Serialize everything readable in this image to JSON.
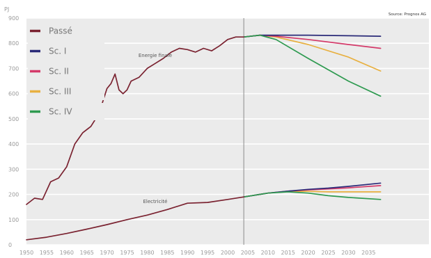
{
  "chart_data": {
    "type": "line",
    "title": "",
    "unit_label": "PJ",
    "source_note": "Source: Prognos AG",
    "xlabel": "",
    "ylabel": "",
    "xlim": [
      1950,
      2050
    ],
    "ylim": [
      0,
      900
    ],
    "grid": true,
    "divider_year": 2004,
    "legend_position": "top-left",
    "y_ticks": [
      0,
      100,
      200,
      300,
      400,
      500,
      600,
      700,
      800,
      900
    ],
    "x_ticks": [
      1950,
      1955,
      1960,
      1965,
      1970,
      1975,
      1980,
      1985,
      1990,
      1995,
      2000,
      2005,
      2010,
      2015,
      2020,
      2025,
      2030,
      2035
    ],
    "x_tick_labels": [
      "1950",
      "1955",
      "1960",
      "1965",
      "1970",
      "1975",
      "1980",
      "1985",
      "1990",
      "1995",
      "2000",
      "2005",
      "2010",
      "2015",
      "2020",
      "2025",
      "2030",
      "2035"
    ],
    "annotations": [
      {
        "text": "Energie finale",
        "x": 1982,
        "y": 745
      },
      {
        "text": "Electricité",
        "x": 1982,
        "y": 165
      }
    ],
    "legend": [
      {
        "key": "passe",
        "label": "Passé",
        "color": "#7a2230"
      },
      {
        "key": "sc1",
        "label": "Sc. I",
        "color": "#2a2a78"
      },
      {
        "key": "sc2",
        "label": "Sc. II",
        "color": "#d43a6a"
      },
      {
        "key": "sc3",
        "label": "Sc. III",
        "color": "#e8b040"
      },
      {
        "key": "sc4",
        "label": "Sc. IV",
        "color": "#2e9a50"
      }
    ],
    "series": [
      {
        "key": "passe",
        "group": "Energie finale",
        "x": [
          1950,
          1952,
          1954,
          1956,
          1958,
          1960,
          1962,
          1964,
          1966,
          1968,
          1970,
          1971,
          1972,
          1973,
          1974,
          1975,
          1976,
          1978,
          1980,
          1982,
          1984,
          1986,
          1988,
          1990,
          1992,
          1994,
          1996,
          1998,
          2000,
          2002,
          2004
        ],
        "y": [
          160,
          185,
          180,
          250,
          265,
          310,
          400,
          445,
          470,
          520,
          620,
          640,
          678,
          615,
          600,
          615,
          650,
          665,
          700,
          720,
          740,
          765,
          780,
          775,
          765,
          780,
          770,
          790,
          815,
          825,
          825
        ]
      },
      {
        "key": "passe",
        "group": "Electricité",
        "x": [
          1950,
          1955,
          1960,
          1965,
          1970,
          1975,
          1980,
          1985,
          1990,
          1995,
          2000,
          2004
        ],
        "y": [
          20,
          30,
          45,
          62,
          80,
          100,
          118,
          140,
          165,
          168,
          180,
          190
        ]
      },
      {
        "key": "sc1",
        "group": "Energie finale",
        "x": [
          2004,
          2008,
          2012,
          2020,
          2030,
          2038
        ],
        "y": [
          825,
          832,
          832,
          832,
          830,
          828
        ]
      },
      {
        "key": "sc2",
        "group": "Energie finale",
        "x": [
          2004,
          2008,
          2012,
          2020,
          2030,
          2038
        ],
        "y": [
          825,
          832,
          828,
          815,
          795,
          780
        ]
      },
      {
        "key": "sc3",
        "group": "Energie finale",
        "x": [
          2004,
          2008,
          2012,
          2020,
          2030,
          2038
        ],
        "y": [
          825,
          832,
          825,
          795,
          745,
          690
        ]
      },
      {
        "key": "sc4",
        "group": "Energie finale",
        "x": [
          2004,
          2008,
          2012,
          2020,
          2030,
          2038
        ],
        "y": [
          825,
          832,
          815,
          740,
          650,
          590
        ]
      },
      {
        "key": "sc1",
        "group": "Electricité",
        "x": [
          2004,
          2010,
          2015,
          2020,
          2025,
          2030,
          2038
        ],
        "y": [
          190,
          205,
          213,
          220,
          225,
          232,
          245
        ]
      },
      {
        "key": "sc2",
        "group": "Electricité",
        "x": [
          2004,
          2010,
          2015,
          2020,
          2025,
          2030,
          2038
        ],
        "y": [
          190,
          205,
          213,
          218,
          222,
          226,
          235
        ]
      },
      {
        "key": "sc3",
        "group": "Electricité",
        "x": [
          2004,
          2010,
          2015,
          2020,
          2025,
          2030,
          2038
        ],
        "y": [
          190,
          205,
          212,
          212,
          210,
          210,
          210
        ]
      },
      {
        "key": "sc4",
        "group": "Electricité",
        "x": [
          2004,
          2010,
          2015,
          2020,
          2025,
          2030,
          2038
        ],
        "y": [
          190,
          205,
          210,
          205,
          195,
          188,
          180
        ]
      }
    ]
  }
}
